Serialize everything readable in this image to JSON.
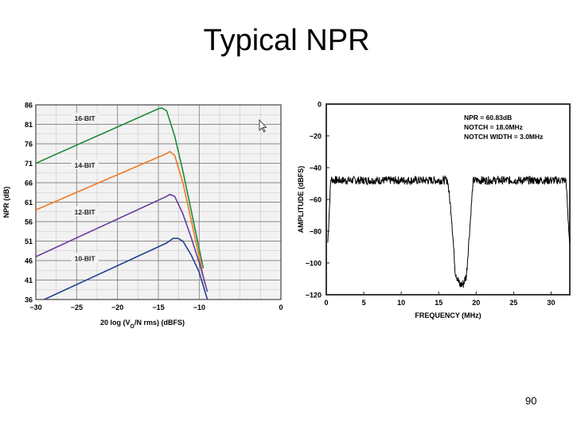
{
  "slide": {
    "title": "Typical NPR",
    "page_number": "90"
  },
  "chart_data": [
    {
      "type": "line",
      "title": "",
      "xlabel": "20 log (V_O/N rms) (dBFS)",
      "ylabel": "NPR (dB)",
      "xlim": [
        -30,
        0
      ],
      "ylim": [
        36,
        86
      ],
      "x_ticks": [
        -30,
        -25,
        -20,
        -15,
        -10,
        0
      ],
      "x_tick_labels": [
        "−30",
        "−25",
        "−20",
        "−15",
        "−10",
        "0"
      ],
      "y_ticks": [
        36,
        41,
        46,
        51,
        56,
        61,
        66,
        71,
        76,
        81,
        86
      ],
      "grid": true,
      "series": [
        {
          "name": "16-BIT",
          "color": "#1e8a3c",
          "x": [
            -30,
            -15,
            -14.6,
            -14,
            -13,
            -12,
            -11,
            -10,
            -9.5
          ],
          "y": [
            71,
            85,
            85.2,
            84.5,
            78,
            69,
            59,
            49,
            44
          ]
        },
        {
          "name": "14-BIT",
          "color": "#f07820",
          "x": [
            -30,
            -14,
            -13.6,
            -13,
            -12,
            -11,
            -10,
            -9.3
          ],
          "y": [
            59,
            73.5,
            74,
            73,
            66,
            56.5,
            47,
            40
          ]
        },
        {
          "name": "12-BIT",
          "color": "#6a3ca0",
          "x": [
            -30,
            -14,
            -13.6,
            -13,
            -12,
            -11,
            -10,
            -9
          ],
          "y": [
            47,
            62.5,
            63,
            62.5,
            58,
            52,
            45.5,
            38
          ]
        },
        {
          "name": "10-BIT",
          "color": "#25408f",
          "x": [
            -30,
            -14,
            -13.2,
            -12.6,
            -12,
            -11,
            -10,
            -9
          ],
          "y": [
            35,
            50.5,
            51.7,
            51.7,
            51,
            47.5,
            43,
            36
          ]
        }
      ]
    },
    {
      "type": "line",
      "title": "",
      "xlabel": "FREQUENCY (MHz)",
      "ylabel": "AMPLITUDE (dBFS)",
      "xlim": [
        0,
        32.5
      ],
      "ylim": [
        -120,
        0
      ],
      "x_ticks": [
        0,
        5,
        10,
        15,
        20,
        25,
        30
      ],
      "y_ticks": [
        0,
        -20,
        -40,
        -60,
        -80,
        -100,
        -120
      ],
      "y_tick_labels": [
        "0",
        "−20",
        "−40",
        "−60",
        "−80",
        "−100",
        "−120"
      ],
      "grid": false,
      "annotation": [
        "NPR = 60.83dB",
        "NOTCH = 18.0MHz",
        "NOTCH WIDTH = 3.0MHz"
      ],
      "series": [
        {
          "color": "#000000",
          "x": [
            0.2,
            0.6,
            1,
            4,
            8,
            12,
            16.2,
            16.7,
            17.2,
            17.8,
            18.3,
            18.7,
            19.2,
            19.6,
            20,
            24,
            28,
            32,
            32.3,
            32.5
          ],
          "y": [
            -87,
            -47,
            -48,
            -48,
            -48,
            -48,
            -48,
            -70,
            -105,
            -114,
            -113,
            -108,
            -75,
            -48,
            -48,
            -48,
            -48,
            -48,
            -75,
            -88
          ]
        }
      ]
    }
  ],
  "icons": {
    "cursor": "mouse-pointer-icon"
  }
}
